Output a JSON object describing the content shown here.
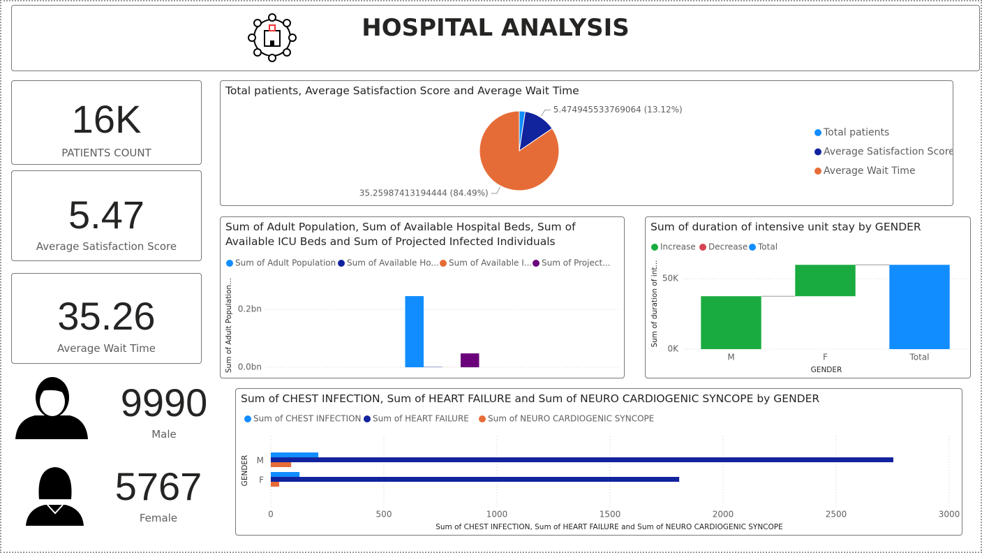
{
  "header": {
    "title": "HOSPITAL ANALYSIS"
  },
  "cards": [
    {
      "value": "16K",
      "label": "PATIENTS COUNT"
    },
    {
      "value": "5.47",
      "label": "Average Satisfaction Score"
    },
    {
      "value": "35.26",
      "label": "Average Wait Time"
    },
    {
      "value": "9990",
      "label": "Male"
    },
    {
      "value": "5767",
      "label": "Female"
    }
  ],
  "chart_data": [
    {
      "type": "pie",
      "title": "Total patients, Average Satisfaction Score and Average Wait Time",
      "categories": [
        "Total patients",
        "Average Satisfaction Score",
        "Average Wait Time"
      ],
      "values": [
        1,
        5.474945533769064,
        35.25987413194444
      ],
      "value_labels": [
        null,
        "5.474945533769064 (13.12%)",
        "35.25987413194444 (84.49%)"
      ],
      "colors": [
        "#118dff",
        "#12239e",
        "#e66c37"
      ]
    },
    {
      "type": "bar",
      "title": "Sum of Adult Population, Sum of Available Hospital Beds, Sum of Available ICU Beds and Sum of Projected Infected Individuals",
      "y_label": "Sum of Adult Population...",
      "categories": [
        null
      ],
      "series": [
        {
          "name": "Sum of Adult Population",
          "color": "#118dff",
          "values": [
            246000000
          ]
        },
        {
          "name": "Sum of Available Ho...",
          "color": "#12239e",
          "values": [
            1000000
          ]
        },
        {
          "name": "Sum of Available I...",
          "color": "#e66c37",
          "values": [
            200000
          ]
        },
        {
          "name": "Sum of Project...",
          "color": "#6b007b",
          "values": [
            48000000
          ]
        }
      ],
      "ylim": [
        0,
        280000000
      ],
      "yticks": [
        {
          "value": 0,
          "label": "0.0bn"
        },
        {
          "value": 200000000,
          "label": "0.2bn"
        }
      ],
      "grid": true
    },
    {
      "type": "waterfall",
      "title": "Sum of duration of intensive unit stay by GENDER",
      "x_label": "GENDER",
      "y_label": "Sum of duration of int...",
      "legend": [
        {
          "name": "Increase",
          "color": "#1aab40"
        },
        {
          "name": "Decrease",
          "color": "#d64554"
        },
        {
          "name": "Total",
          "color": "#118dff"
        }
      ],
      "categories": [
        "M",
        "F",
        "Total"
      ],
      "values": [
        37600,
        22300,
        59900
      ],
      "ylim": [
        0,
        65000
      ],
      "yticks": [
        {
          "value": 0,
          "label": "0K"
        },
        {
          "value": 50000,
          "label": "50K"
        }
      ],
      "grid": true
    },
    {
      "type": "bar",
      "horizontal": true,
      "title": "Sum of CHEST INFECTION, Sum of HEART FAILURE and Sum of NEURO CARDIOGENIC SYNCOPE by GENDER",
      "x_label": "Sum of CHEST INFECTION, Sum of HEART FAILURE and Sum of NEURO CARDIOGENIC SYNCOPE",
      "y_label": "GENDER",
      "categories": [
        "M",
        "F"
      ],
      "series": [
        {
          "name": "Sum of CHEST INFECTION",
          "color": "#118dff",
          "values": [
            210,
            127
          ]
        },
        {
          "name": "Sum of HEART FAILURE",
          "color": "#12239e",
          "values": [
            2753,
            1806
          ]
        },
        {
          "name": "Sum of NEURO CARDIOGENIC SYNCOPE",
          "color": "#e66c37",
          "values": [
            90,
            37
          ]
        }
      ],
      "xlim": [
        0,
        3000
      ],
      "xticks": [
        0,
        500,
        1000,
        1500,
        2000,
        2500,
        3000
      ],
      "grid": true
    }
  ]
}
